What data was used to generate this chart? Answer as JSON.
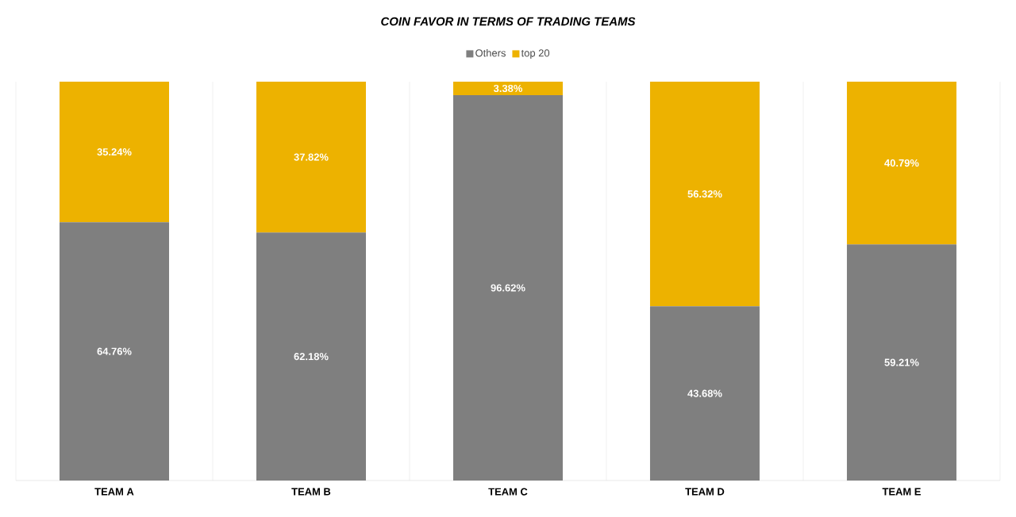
{
  "chart_data": {
    "type": "bar",
    "stacked": true,
    "title": "COIN FAVOR IN TERMS OF TRADING TEAMS",
    "categories": [
      "TEAM A",
      "TEAM B",
      "TEAM C",
      "TEAM D",
      "TEAM E"
    ],
    "series": [
      {
        "name": "Others",
        "color": "#7f7f7f",
        "values": [
          64.76,
          62.18,
          96.62,
          43.68,
          59.21
        ],
        "value_labels": [
          "64.76%",
          "62.18%",
          "96.62%",
          "43.68%",
          "59.21%"
        ]
      },
      {
        "name": "top 20",
        "color": "#edb200",
        "values": [
          35.24,
          37.82,
          3.38,
          56.32,
          40.79
        ],
        "value_labels": [
          "35.24%",
          "37.82%",
          "3.38%",
          "56.32%",
          "40.79%"
        ]
      }
    ],
    "tick_labels": "x",
    "grid": "x",
    "legend": "top"
  }
}
